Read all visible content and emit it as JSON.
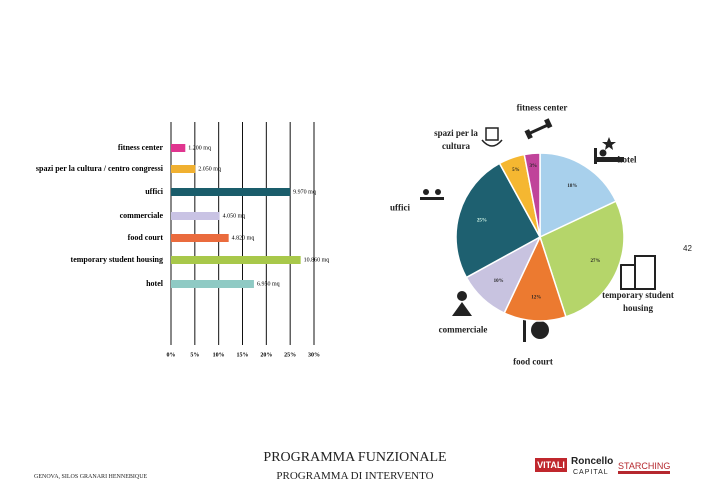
{
  "chart_data": [
    {
      "type": "bar",
      "orientation": "horizontal",
      "categories": [
        "fitness center",
        "spazi per la cultura / centro congressi",
        "uffici",
        "commerciale",
        "food court",
        "temporary student housing",
        "hotel"
      ],
      "values": [
        3.0,
        5.1,
        25.0,
        10.2,
        12.1,
        27.2,
        17.4
      ],
      "area_labels": [
        "1.200 mq",
        "2.050 mq",
        "9.970 mq",
        "4.050 mq",
        "4.820 mq",
        "10.860 mq",
        "6.950 mq"
      ],
      "colors": [
        "#e0358f",
        "#f0b030",
        "#1a5d6b",
        "#c9c3e4",
        "#ea6b3d",
        "#a8c84a",
        "#8fcac4"
      ],
      "xlim": [
        0,
        30
      ],
      "xticks": [
        {
          "value": 0,
          "label": "0%"
        },
        {
          "value": 5,
          "label": "5%"
        },
        {
          "value": 10,
          "label": "10%"
        },
        {
          "value": 15,
          "label": "15%"
        },
        {
          "value": 20,
          "label": "20%"
        },
        {
          "value": 25,
          "label": "25%"
        },
        {
          "value": 30,
          "label": "30%"
        }
      ],
      "grid": true
    },
    {
      "type": "pie",
      "categories": [
        "hotel",
        "temporary student housing",
        "food court",
        "commerciale",
        "uffici",
        "spazi per la cultura",
        "fitness center"
      ],
      "values": [
        18,
        27,
        12,
        10,
        25,
        5,
        3
      ],
      "value_labels": [
        "18%",
        "27%",
        "12%",
        "10%",
        "25%",
        "5%",
        "3%"
      ],
      "colors": [
        "#a8d0ec",
        "#b5d56a",
        "#ec7a30",
        "#c8c3e0",
        "#1e6070",
        "#f5b731",
        "#c0449a"
      ]
    }
  ],
  "footer": {
    "title": "PROGRAMMA FUNZIONALE",
    "subtitle": "PROGRAMMA DI INTERVENTO",
    "location": "GENOVA, SILOS GRANARI HENNEBIQUE",
    "page": "42",
    "logos": [
      "VITALI",
      "Roncello",
      "CAPITAL",
      "STARCHING"
    ]
  }
}
